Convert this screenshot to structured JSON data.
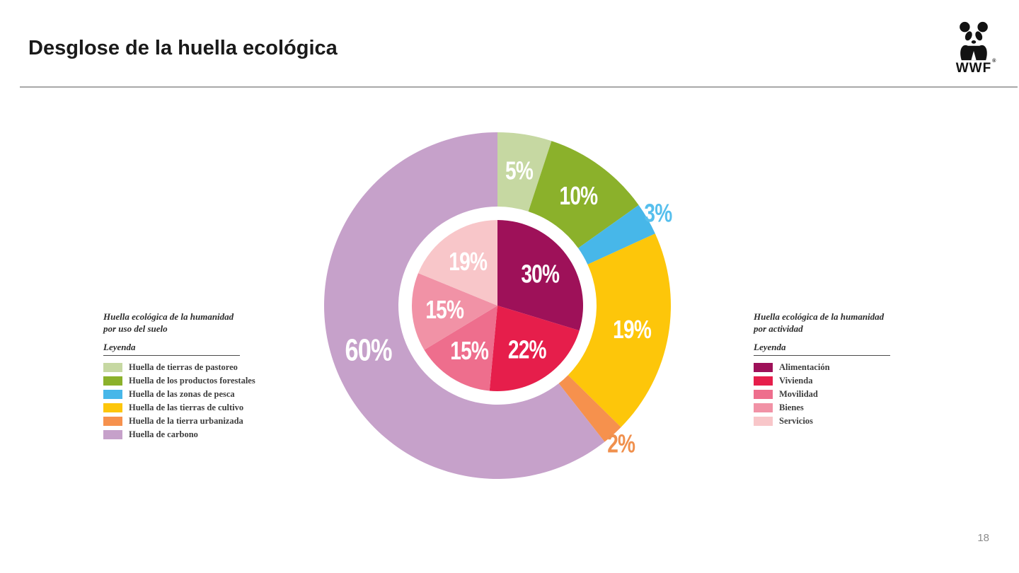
{
  "page": {
    "title": "Desglose de la huella ecológica",
    "logo": "WWF",
    "logo_reg": "®",
    "page_number": "18"
  },
  "chart_data": {
    "type": "pie",
    "subtype": "double-donut",
    "legend_position": "left-and-right",
    "rings": [
      {
        "id": "outer-ring-land-use",
        "shape": "ring",
        "legend_container": "legend-items-left",
        "legend_title_line1": "Huella ecológica de la humanidad",
        "legend_title_line2": "por uso del suelo",
        "legend_caption": "Leyenda",
        "r_outer": 245,
        "r_inner": 140,
        "label_r": 193,
        "label_out_r": 262,
        "label_size": 36,
        "slices": [
          {
            "label": "Huella de tierras de pastoreo",
            "value": 5,
            "text": "5%",
            "color": "#c6d8a2",
            "label_pos": "inside"
          },
          {
            "label": "Huella de los productos forestales",
            "value": 10,
            "text": "10%",
            "color": "#8bb12b",
            "label_pos": "inside"
          },
          {
            "label": "Huella de las zonas de pesca",
            "value": 3,
            "text": "3%",
            "color": "#47b7e9",
            "label_pos": "outside",
            "label_color": "#56bfed"
          },
          {
            "label": "Huella de las tierras de cultivo",
            "value": 19,
            "text": "19%",
            "color": "#fdc60a",
            "label_pos": "inside"
          },
          {
            "label": "Huella de la tierra urbanizada",
            "value": 2,
            "text": "2%",
            "color": "#f6914d",
            "label_pos": "outside",
            "label_color": "#f0904d"
          },
          {
            "label": "Huella de carbono",
            "value": 60,
            "text": "60%",
            "color": "#c6a1ca",
            "label_pos": "inside",
            "label_size": 44
          }
        ]
      },
      {
        "id": "inner-pie-activity",
        "shape": "pie",
        "legend_container": "legend-items-right",
        "legend_title_line1": "Huella ecológica de la humanidad",
        "legend_title_line2": "por actividad",
        "legend_caption": "Leyenda",
        "r": 121,
        "label_r": 75,
        "label_size": 36,
        "slices": [
          {
            "label": "Alimentación",
            "value": 30,
            "text": "30%",
            "color": "#9e1159",
            "label_pos": "inside"
          },
          {
            "label": "Vivienda",
            "value": 22,
            "text": "22%",
            "color": "#e61e4b",
            "label_pos": "inside"
          },
          {
            "label": "Movilidad",
            "value": 15,
            "text": "15%",
            "color": "#ee6e8d",
            "label_pos": "inside"
          },
          {
            "label": "Bienes",
            "value": 15,
            "text": "15%",
            "color": "#f192a6",
            "label_pos": "inside"
          },
          {
            "label": "Servicios",
            "value": 19,
            "text": "19%",
            "color": "#f8c6c9",
            "label_pos": "inside"
          }
        ]
      }
    ]
  }
}
